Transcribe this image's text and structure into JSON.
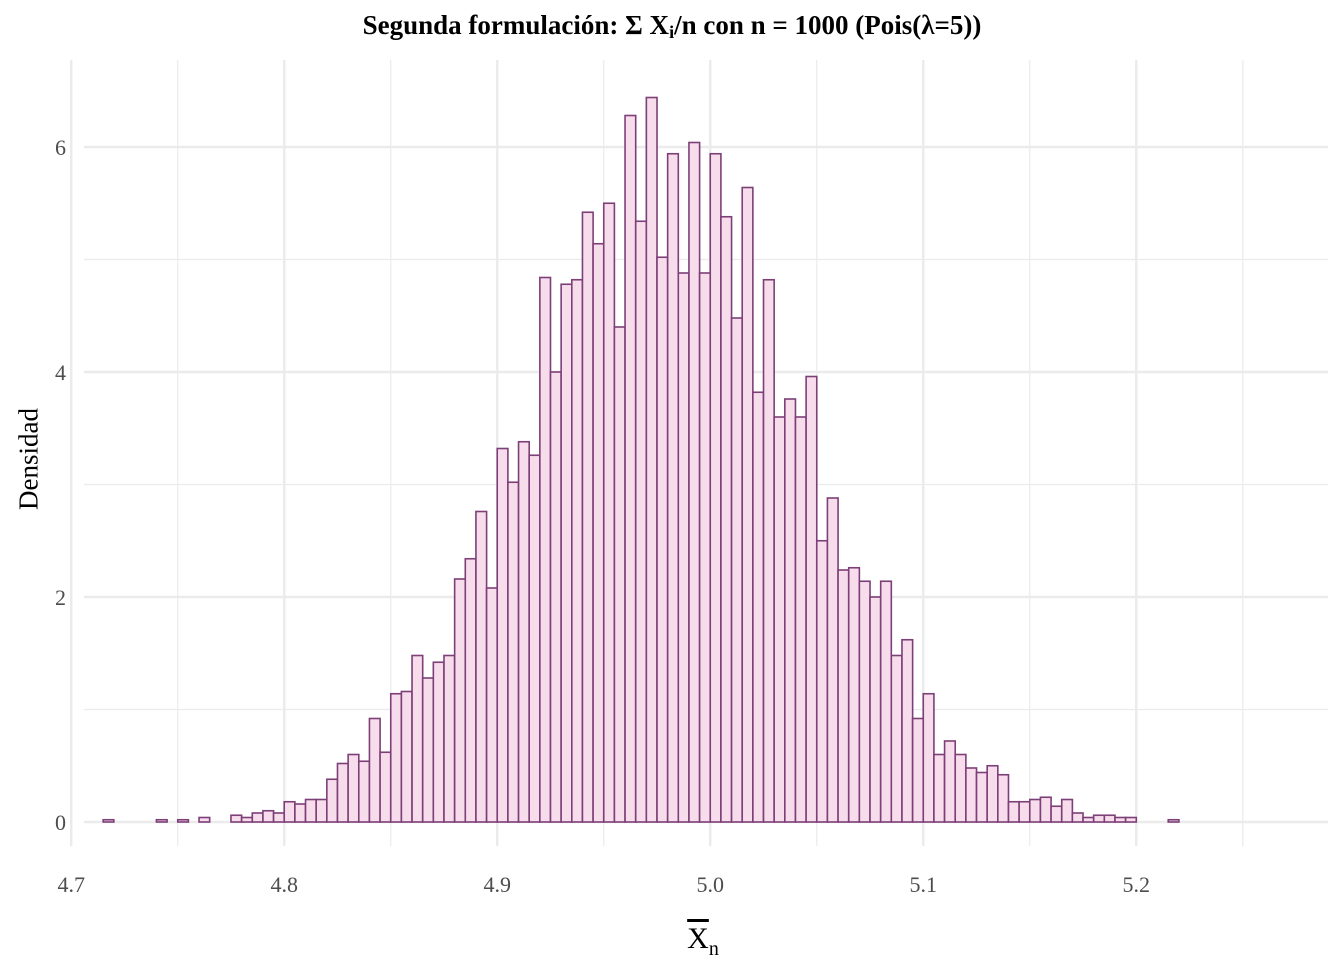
{
  "chart_data": {
    "type": "bar",
    "title_parts": {
      "prefix": "Segunda formulación: Σ X",
      "subscript": "i",
      "suffix": "/n con n = 1000 (Pois(λ=5))"
    },
    "xlabel_parts": {
      "base": "X",
      "subscript": "n"
    },
    "ylabel": "Densidad",
    "xlim": [
      4.706,
      5.29
    ],
    "ylim": [
      0,
      6.65
    ],
    "x_ticks": [
      "4.7",
      "4.8",
      "4.9",
      "5.0",
      "5.1",
      "5.2"
    ],
    "x_tick_values": [
      4.7,
      4.8,
      4.9,
      5.0,
      5.1,
      5.2
    ],
    "y_ticks": [
      "0",
      "2",
      "4",
      "6"
    ],
    "y_tick_values": [
      0,
      2,
      4,
      6
    ],
    "grid": true,
    "legend": false,
    "bin_start": 4.715,
    "bin_width": 0.005,
    "density": [
      0.02,
      0,
      0,
      0,
      0,
      0.02,
      0,
      0.02,
      0,
      0.04,
      0,
      0,
      0.06,
      0.04,
      0.08,
      0.1,
      0.08,
      0.18,
      0.16,
      0.2,
      0.2,
      0.38,
      0.52,
      0.6,
      0.54,
      0.92,
      0.62,
      1.14,
      1.16,
      1.48,
      1.28,
      1.42,
      1.48,
      2.16,
      2.34,
      2.76,
      2.08,
      3.32,
      3.02,
      3.38,
      3.26,
      4.84,
      4.0,
      4.78,
      4.82,
      5.42,
      5.14,
      5.5,
      4.4,
      6.28,
      5.34,
      6.44,
      5.02,
      5.94,
      4.88,
      6.04,
      4.88,
      5.94,
      5.38,
      4.48,
      5.64,
      3.82,
      4.82,
      3.6,
      3.76,
      3.6,
      3.96,
      2.5,
      2.88,
      2.24,
      2.26,
      2.14,
      2.0,
      2.14,
      1.48,
      1.62,
      0.92,
      1.14,
      0.6,
      0.72,
      0.6,
      0.48,
      0.44,
      0.5,
      0.42,
      0.18,
      0.18,
      0.2,
      0.22,
      0.14,
      0.2,
      0.08,
      0.04,
      0.06,
      0.06,
      0.04,
      0.04,
      0,
      0,
      0,
      0.02
    ],
    "colors": {
      "fill": "#f7dcec",
      "stroke": "#7d3f78",
      "grid": "#ebebeb",
      "tick_text": "#4d4d4d"
    }
  }
}
